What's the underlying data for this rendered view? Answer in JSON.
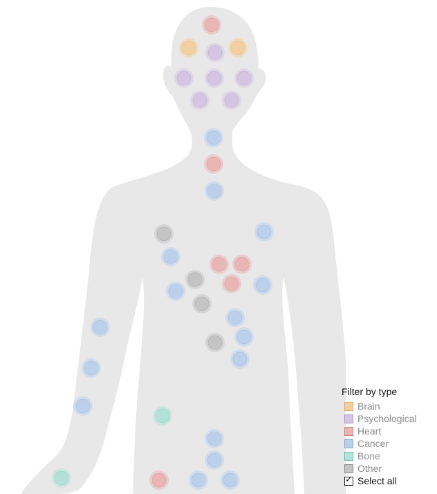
{
  "filter": {
    "title": "Filter by type",
    "types": [
      {
        "key": "brain",
        "label": "Brain",
        "color": "#f3cfa0",
        "border": "#d9a867"
      },
      {
        "key": "psychological",
        "label": "Psychological",
        "color": "#d4c6e3",
        "border": "#a996c4"
      },
      {
        "key": "heart",
        "label": "Heart",
        "color": "#eab4b4",
        "border": "#cc8080"
      },
      {
        "key": "cancer",
        "label": "Cancer",
        "color": "#bcd0ec",
        "border": "#86a6d4"
      },
      {
        "key": "bone",
        "label": "Bone",
        "color": "#b2e1d7",
        "border": "#6cc2ae"
      },
      {
        "key": "other",
        "label": "Other",
        "color": "#c4c4c4",
        "border": "#8c8c8c"
      }
    ],
    "select_all": {
      "label": "Select all",
      "checked": true,
      "check_glyph": "✓"
    }
  },
  "dots": [
    {
      "type": "heart"
    },
    {
      "type": "brain"
    },
    {
      "type": "psychological"
    },
    {
      "type": "brain"
    },
    {
      "type": "psychological"
    },
    {
      "type": "psychological"
    },
    {
      "type": "psychological"
    },
    {
      "type": "psychological"
    },
    {
      "type": "psychological"
    },
    {
      "type": "cancer"
    },
    {
      "type": "heart"
    },
    {
      "type": "cancer"
    },
    {
      "type": "other"
    },
    {
      "type": "cancer"
    },
    {
      "type": "cancer"
    },
    {
      "type": "heart"
    },
    {
      "type": "heart"
    },
    {
      "type": "other"
    },
    {
      "type": "heart"
    },
    {
      "type": "cancer"
    },
    {
      "type": "cancer"
    },
    {
      "type": "other"
    },
    {
      "type": "cancer"
    },
    {
      "type": "cancer"
    },
    {
      "type": "other"
    },
    {
      "type": "cancer"
    },
    {
      "type": "cancer"
    },
    {
      "type": "cancer"
    },
    {
      "type": "cancer"
    },
    {
      "type": "bone"
    },
    {
      "type": "cancer"
    },
    {
      "type": "cancer"
    },
    {
      "type": "bone"
    },
    {
      "type": "heart"
    },
    {
      "type": "cancer"
    },
    {
      "type": "cancer"
    }
  ]
}
